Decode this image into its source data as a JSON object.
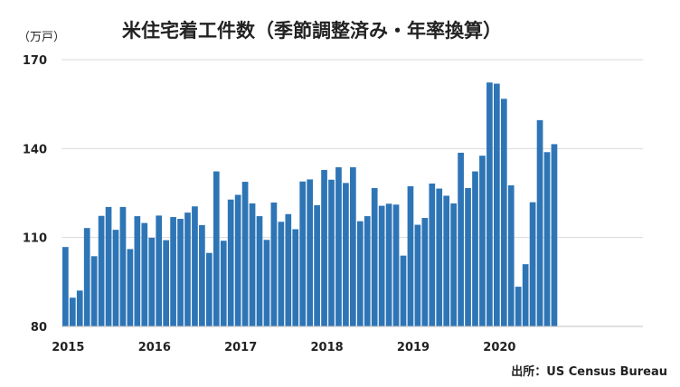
{
  "chart_data": {
    "type": "bar",
    "title": "米住宅着工件数（季節調整済み・年率換算）",
    "unit_label": "（万戸）",
    "source": "出所：US Census Bureau",
    "ylim": [
      80,
      170
    ],
    "yticks": [
      80,
      110,
      140,
      170
    ],
    "grid": true,
    "color": "#2e75b6",
    "year_labels": [
      "2015",
      "2016",
      "2017",
      "2018",
      "2019",
      "2020"
    ],
    "x": [
      "2015-01",
      "2015-02",
      "2015-03",
      "2015-04",
      "2015-05",
      "2015-06",
      "2015-07",
      "2015-08",
      "2015-09",
      "2015-10",
      "2015-11",
      "2015-12",
      "2016-01",
      "2016-02",
      "2016-03",
      "2016-04",
      "2016-05",
      "2016-06",
      "2016-07",
      "2016-08",
      "2016-09",
      "2016-10",
      "2016-11",
      "2016-12",
      "2017-01",
      "2017-02",
      "2017-03",
      "2017-04",
      "2017-05",
      "2017-06",
      "2017-07",
      "2017-08",
      "2017-09",
      "2017-10",
      "2017-11",
      "2017-12",
      "2018-01",
      "2018-02",
      "2018-03",
      "2018-04",
      "2018-05",
      "2018-06",
      "2018-07",
      "2018-08",
      "2018-09",
      "2018-10",
      "2018-11",
      "2018-12",
      "2019-01",
      "2019-02",
      "2019-03",
      "2019-04",
      "2019-05",
      "2019-06",
      "2019-07",
      "2019-08",
      "2019-09",
      "2019-10",
      "2019-11",
      "2019-12",
      "2020-01",
      "2020-02",
      "2020-03",
      "2020-04",
      "2020-05",
      "2020-06",
      "2020-07",
      "2020-08",
      "2020-09"
    ],
    "values": [
      106.8,
      89.7,
      92.1,
      113.2,
      103.7,
      117.3,
      120.3,
      112.6,
      120.3,
      106.1,
      117.2,
      114.9,
      109.9,
      117.4,
      109.1,
      116.9,
      116.3,
      118.4,
      120.5,
      114.2,
      104.8,
      132.3,
      108.9,
      122.8,
      124.4,
      128.8,
      121.5,
      117.2,
      109.2,
      121.8,
      115.3,
      117.9,
      112.8,
      128.9,
      129.6,
      120.9,
      132.8,
      129.5,
      133.7,
      128.4,
      133.7,
      115.5,
      117.2,
      126.7,
      120.7,
      121.4,
      121.1,
      103.9,
      127.3,
      114.3,
      116.6,
      128.2,
      126.5,
      124.1,
      121.5,
      138.6,
      126.7,
      132.3,
      137.6,
      162.3,
      161.9,
      156.8,
      127.6,
      93.4,
      101.0,
      121.9,
      149.6,
      138.8,
      141.5
    ]
  }
}
